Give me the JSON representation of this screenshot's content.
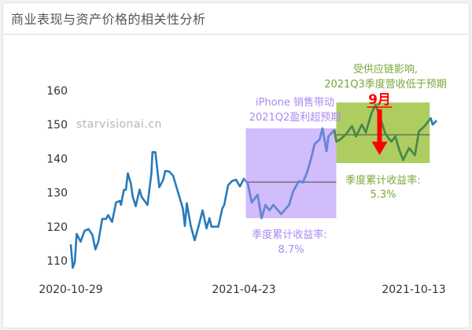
{
  "header": {
    "title": "商业表现与资产价格的相关性分析"
  },
  "watermark": "starvisionai.cn",
  "chart_data": {
    "type": "line",
    "title": "",
    "xlabel": "",
    "ylabel": "",
    "ylim": [
      105,
      163
    ],
    "yticks": [
      110,
      120,
      130,
      140,
      150,
      160
    ],
    "xticks": [
      "2020-10-29",
      "2021-04-23",
      "2021-10-13"
    ],
    "grid": false,
    "line_color": "#2a7ab8",
    "series": [
      {
        "x": [
          "2020-10-29",
          "2020-10-31",
          "2020-11-02",
          "2020-11-04",
          "2020-11-08",
          "2020-11-12",
          "2020-11-16",
          "2020-11-20",
          "2020-11-23",
          "2020-11-26",
          "2020-11-30",
          "2020-12-04",
          "2020-12-06",
          "2020-12-10",
          "2020-12-14",
          "2020-12-18",
          "2020-12-19",
          "2020-12-22",
          "2020-12-24",
          "2020-12-26",
          "2020-12-29",
          "2020-12-31",
          "2021-01-03",
          "2021-01-07",
          "2021-01-09",
          "2021-01-15",
          "2021-01-19",
          "2021-01-20",
          "2021-01-23",
          "2021-01-27",
          "2021-01-31",
          "2021-02-02",
          "2021-02-06",
          "2021-02-10",
          "2021-02-16",
          "2021-02-20",
          "2021-02-22",
          "2021-02-24",
          "2021-02-28",
          "2021-03-04",
          "2021-03-08",
          "2021-03-12",
          "2021-03-16",
          "2021-03-19",
          "2021-03-21",
          "2021-03-28",
          "2021-04-01",
          "2021-04-03",
          "2021-04-07",
          "2021-04-11",
          "2021-04-15",
          "2021-04-19",
          "2021-04-23",
          "2021-04-27",
          "2021-05-01",
          "2021-05-07",
          "2021-05-11",
          "2021-05-15",
          "2021-05-19",
          "2021-05-23",
          "2021-05-31",
          "2021-06-08",
          "2021-06-12",
          "2021-06-18",
          "2021-06-22",
          "2021-06-26",
          "2021-06-30",
          "2021-07-04",
          "2021-07-09",
          "2021-07-12",
          "2021-07-16",
          "2021-07-18",
          "2021-07-24",
          "2021-07-26",
          "2021-07-30",
          "2021-08-05",
          "2021-08-11",
          "2021-08-15",
          "2021-08-21",
          "2021-08-25",
          "2021-08-31",
          "2021-09-04",
          "2021-09-08",
          "2021-09-14",
          "2021-09-20",
          "2021-09-24",
          "2021-09-28",
          "2021-10-02",
          "2021-10-08",
          "2021-10-14",
          "2021-10-18",
          "2021-10-24",
          "2021-10-30",
          "2021-11-01",
          "2021-11-05"
        ],
        "values": [
          114.8,
          107.9,
          109.5,
          117.9,
          115.6,
          118.8,
          119.3,
          117.6,
          113.3,
          115.6,
          122.3,
          122.3,
          123.4,
          121.4,
          127.1,
          127.6,
          126.4,
          130.8,
          130.8,
          135.7,
          132.7,
          128.8,
          126.0,
          130.9,
          128.8,
          126.4,
          135.7,
          141.9,
          141.9,
          131.6,
          133.8,
          136.4,
          136.2,
          135.0,
          129.2,
          125.3,
          120.2,
          126.9,
          120.2,
          116.0,
          120.2,
          124.8,
          119.5,
          122.5,
          120.0,
          120.0,
          125.3,
          126.4,
          132.2,
          133.4,
          133.8,
          131.8,
          134.1,
          132.7,
          127.1,
          129.4,
          122.5,
          126.4,
          124.8,
          126.4,
          123.7,
          126.4,
          130.3,
          133.4,
          133.0,
          135.7,
          139.6,
          144.3,
          145.6,
          148.9,
          142.2,
          146.5,
          148.4,
          145.0,
          145.6,
          147.2,
          149.6,
          146.5,
          150.0,
          147.7,
          153.5,
          155.8,
          152.6,
          147.2,
          145.0,
          146.5,
          142.6,
          139.6,
          143.1,
          141.0,
          148.0,
          149.6,
          151.9,
          150.0,
          151.2
        ]
      }
    ],
    "annotations": [
      {
        "type": "box",
        "x_range": [
          "2021-04-25",
          "2021-07-26"
        ],
        "y_range": [
          122.5,
          148.9
        ],
        "mean": 133.1,
        "color": "#c9b0fb",
        "text_color": "#a98af0",
        "label": [
          "iPhone 销售带动",
          "2021Q2盈利超预期"
        ],
        "return_label": "季度累计收益率:",
        "return_value": "8.7%"
      },
      {
        "type": "box",
        "x_range": [
          "2021-07-26",
          "2021-10-29"
        ],
        "y_range": [
          138.7,
          156.5
        ],
        "mean": 147.0,
        "color": "#a5c850",
        "text_color": "#7aa83a",
        "label": [
          "受供应链影响,",
          "2021Q3季度营收低于预期"
        ],
        "return_label": "季度累计收益率:",
        "return_value": "5.3%"
      },
      {
        "type": "arrow",
        "text": "9月",
        "color": "#ff0000",
        "x": "2021-09-08",
        "y_from": 154.5,
        "y_to": 141.5
      }
    ]
  }
}
